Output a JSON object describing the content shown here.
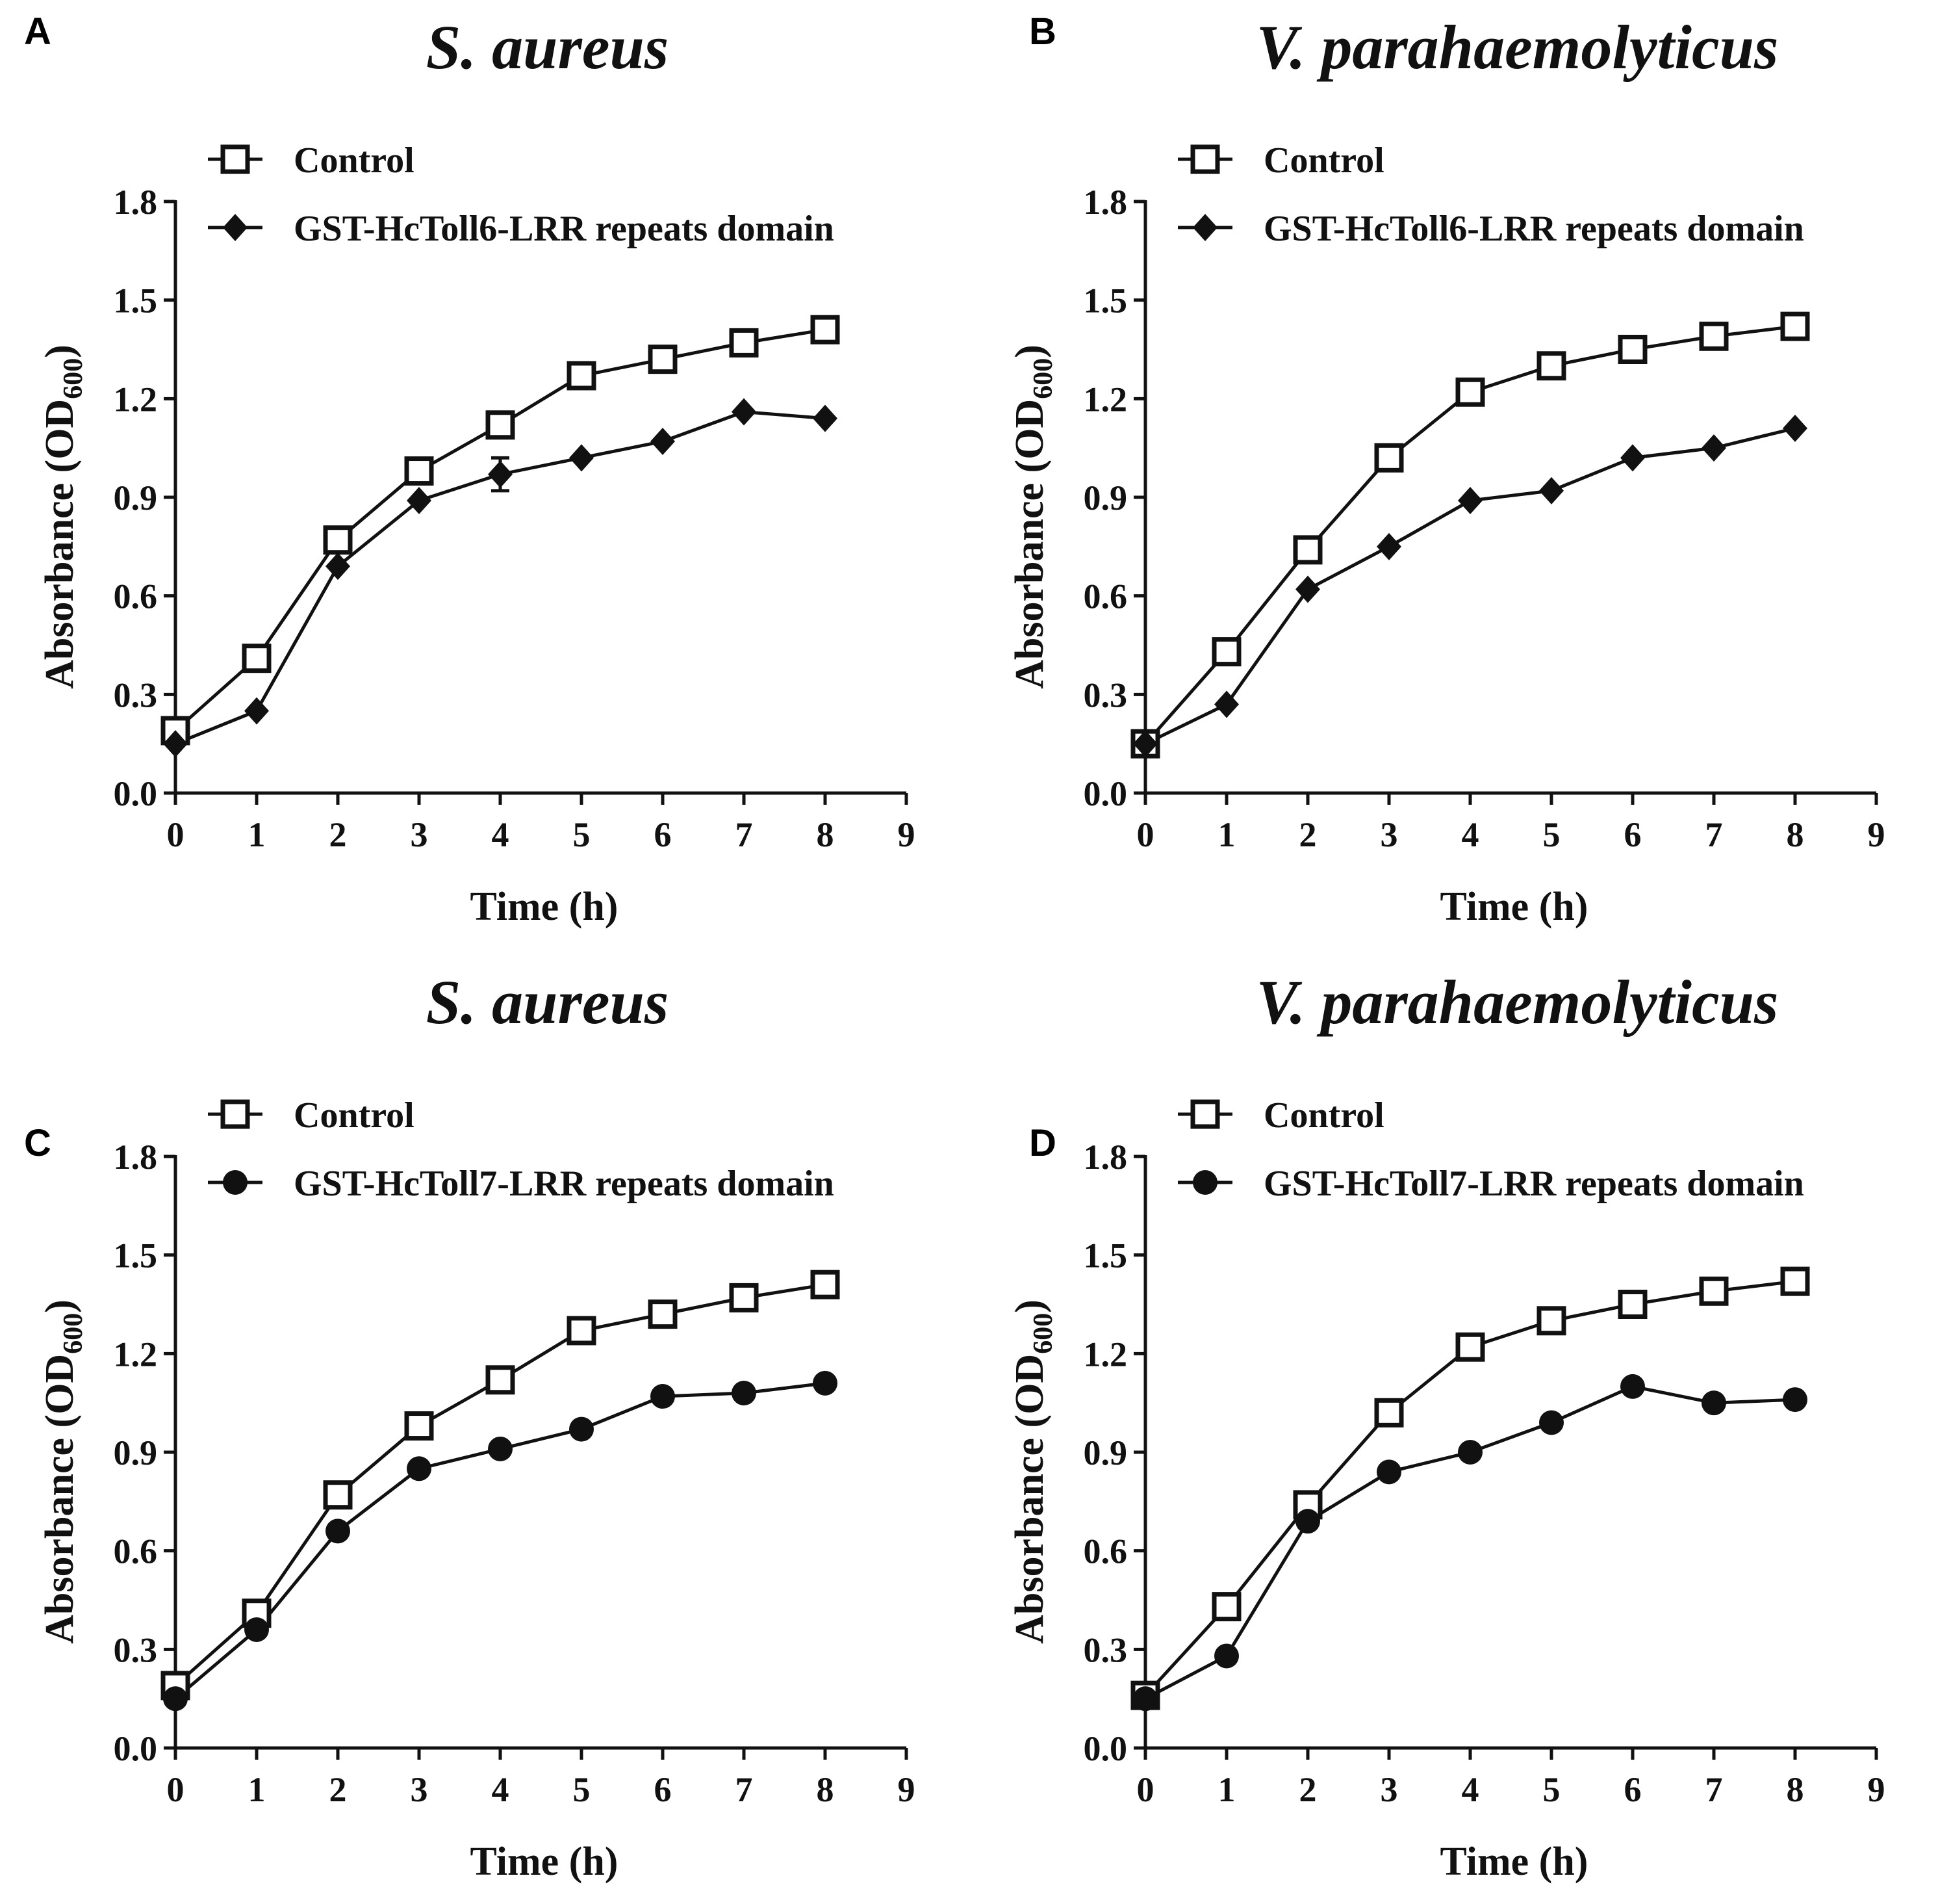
{
  "chart_data": [
    {
      "panel": "A",
      "type": "line",
      "title": "S. aureus",
      "xlabel": "Time (h)",
      "ylabel": "Absorbance (OD",
      "ylabel_sub": "600",
      "ylabel_close": ")",
      "xlim": [
        0,
        9
      ],
      "ylim": [
        0,
        1.8
      ],
      "xticks": [
        "0",
        "1",
        "2",
        "3",
        "4",
        "5",
        "6",
        "7",
        "8",
        "9"
      ],
      "yticks": [
        "0.0",
        "0.3",
        "0.6",
        "0.9",
        "1.2",
        "1.5",
        "1.8"
      ],
      "grid": false,
      "legend_position": "top-left",
      "x": [
        0,
        1,
        2,
        3,
        4,
        5,
        6,
        7,
        8
      ],
      "series": [
        {
          "name": "Control",
          "marker": "open-square",
          "values": [
            0.19,
            0.41,
            0.77,
            0.98,
            1.12,
            1.27,
            1.32,
            1.37,
            1.41
          ]
        },
        {
          "name": "GST-HcToll6-LRR repeats domain",
          "marker": "filled-diamond",
          "values": [
            0.15,
            0.25,
            0.69,
            0.89,
            0.97,
            1.02,
            1.07,
            1.16,
            1.14
          ],
          "error_bars": [
            0,
            0,
            0,
            0,
            0.05,
            0,
            0,
            0,
            0
          ]
        }
      ]
    },
    {
      "panel": "B",
      "type": "line",
      "title": "V. parahaemolyticus",
      "xlabel": "Time (h)",
      "ylabel": "Absorbance (OD",
      "ylabel_sub": "600",
      "ylabel_close": ")",
      "xlim": [
        0,
        9
      ],
      "ylim": [
        0,
        1.8
      ],
      "xticks": [
        "0",
        "1",
        "2",
        "3",
        "4",
        "5",
        "6",
        "7",
        "8",
        "9"
      ],
      "yticks": [
        "0.0",
        "0.3",
        "0.6",
        "0.9",
        "1.2",
        "1.5",
        "1.8"
      ],
      "grid": false,
      "legend_position": "top-left",
      "x": [
        0,
        1,
        2,
        3,
        4,
        5,
        6,
        7,
        8
      ],
      "series": [
        {
          "name": "Control",
          "marker": "open-square",
          "values": [
            0.15,
            0.43,
            0.74,
            1.02,
            1.22,
            1.3,
            1.35,
            1.39,
            1.42
          ]
        },
        {
          "name": "GST-HcToll6-LRR repeats domain",
          "marker": "filled-diamond",
          "values": [
            0.15,
            0.27,
            0.62,
            0.75,
            0.89,
            0.92,
            1.02,
            1.05,
            1.11
          ]
        }
      ]
    },
    {
      "panel": "C",
      "type": "line",
      "title": "S. aureus",
      "xlabel": "Time (h)",
      "ylabel": "Absorbance (OD",
      "ylabel_sub": "600",
      "ylabel_close": ")",
      "xlim": [
        0,
        9
      ],
      "ylim": [
        0,
        1.8
      ],
      "xticks": [
        "0",
        "1",
        "2",
        "3",
        "4",
        "5",
        "6",
        "7",
        "8",
        "9"
      ],
      "yticks": [
        "0.0",
        "0.3",
        "0.6",
        "0.9",
        "1.2",
        "1.5",
        "1.8"
      ],
      "grid": false,
      "legend_position": "top-left",
      "x": [
        0,
        1,
        2,
        3,
        4,
        5,
        6,
        7,
        8
      ],
      "series": [
        {
          "name": "Control",
          "marker": "open-square",
          "values": [
            0.19,
            0.41,
            0.77,
            0.98,
            1.12,
            1.27,
            1.32,
            1.37,
            1.41
          ]
        },
        {
          "name": "GST-HcToll7-LRR repeats domain",
          "marker": "filled-circle",
          "values": [
            0.15,
            0.36,
            0.66,
            0.85,
            0.91,
            0.97,
            1.07,
            1.08,
            1.11
          ]
        }
      ]
    },
    {
      "panel": "D",
      "type": "line",
      "title": "V. parahaemolyticus",
      "xlabel": "Time (h)",
      "ylabel": "Absorbance (OD",
      "ylabel_sub": "600",
      "ylabel_close": ")",
      "xlim": [
        0,
        9
      ],
      "ylim": [
        0,
        1.8
      ],
      "xticks": [
        "0",
        "1",
        "2",
        "3",
        "4",
        "5",
        "6",
        "7",
        "8",
        "9"
      ],
      "yticks": [
        "0.0",
        "0.3",
        "0.6",
        "0.9",
        "1.2",
        "1.5",
        "1.8"
      ],
      "grid": false,
      "legend_position": "top-left",
      "x": [
        0,
        1,
        2,
        3,
        4,
        5,
        6,
        7,
        8
      ],
      "series": [
        {
          "name": "Control",
          "marker": "open-square",
          "values": [
            0.16,
            0.43,
            0.74,
            1.02,
            1.22,
            1.3,
            1.35,
            1.39,
            1.42
          ]
        },
        {
          "name": "GST-HcToll7-LRR repeats domain",
          "marker": "filled-circle",
          "values": [
            0.15,
            0.28,
            0.69,
            0.84,
            0.9,
            0.99,
            1.1,
            1.05,
            1.06
          ]
        }
      ]
    }
  ]
}
